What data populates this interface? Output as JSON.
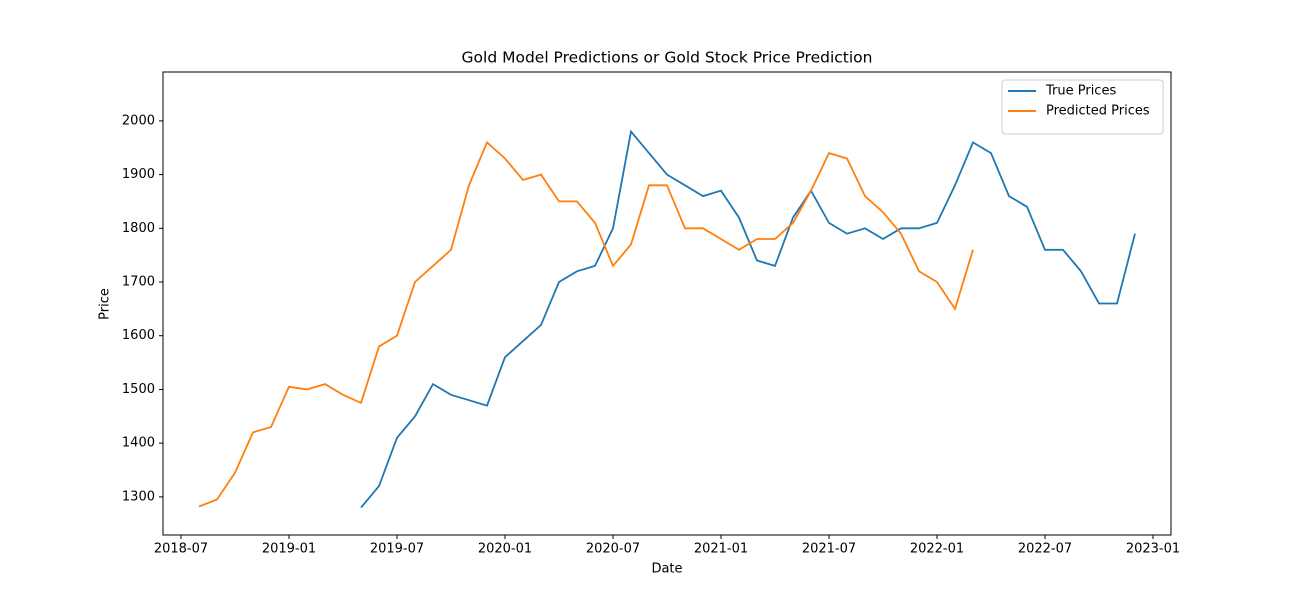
{
  "chart_data": {
    "type": "line",
    "title": "Gold Model Predictions or Gold Stock Price Prediction",
    "x_label": "Date",
    "y_label": "Price",
    "x": [
      "2018-08",
      "2018-09",
      "2018-10",
      "2018-11",
      "2018-12",
      "2019-01",
      "2019-02",
      "2019-03",
      "2019-04",
      "2019-05",
      "2019-06",
      "2019-07",
      "2019-08",
      "2019-09",
      "2019-10",
      "2019-11",
      "2019-12",
      "2020-01",
      "2020-02",
      "2020-03",
      "2020-04",
      "2020-05",
      "2020-06",
      "2020-07",
      "2020-08",
      "2020-09",
      "2020-10",
      "2020-11",
      "2020-12",
      "2021-01",
      "2021-02",
      "2021-03",
      "2021-04",
      "2021-05",
      "2021-06",
      "2021-07",
      "2021-08",
      "2021-09",
      "2021-10",
      "2021-11",
      "2021-12",
      "2022-01",
      "2022-02",
      "2022-03",
      "2022-04",
      "2022-05",
      "2022-06",
      "2022-07",
      "2022-08",
      "2022-09",
      "2022-10",
      "2022-11",
      "2022-12"
    ],
    "series": [
      {
        "name": "True Prices",
        "color": "#1f77b4",
        "values": [
          null,
          null,
          null,
          null,
          null,
          null,
          null,
          null,
          null,
          1280,
          1320,
          1410,
          1450,
          1510,
          1490,
          1480,
          1470,
          1560,
          1590,
          1620,
          1700,
          1720,
          1730,
          1800,
          1980,
          1940,
          1900,
          1880,
          1860,
          1870,
          1820,
          1740,
          1730,
          1820,
          1870,
          1810,
          1790,
          1800,
          1780,
          1800,
          1800,
          1810,
          1880,
          1960,
          1940,
          1860,
          1840,
          1760,
          1760,
          1720,
          1660,
          1660,
          1790
        ]
      },
      {
        "name": "Predicted Prices",
        "color": "#ff7f0e",
        "values": [
          1282,
          1295,
          1345,
          1420,
          1430,
          1505,
          1500,
          1510,
          1490,
          1475,
          1580,
          1600,
          1700,
          1730,
          1760,
          1880,
          1960,
          1930,
          1890,
          1900,
          1850,
          1850,
          1810,
          1730,
          1770,
          1880,
          1880,
          1800,
          1800,
          1780,
          1760,
          1780,
          1780,
          1810,
          1870,
          1940,
          1930,
          1860,
          1830,
          1790,
          1720,
          1700,
          1650,
          1760,
          null,
          null,
          null,
          null,
          null,
          null,
          null,
          null,
          null
        ]
      }
    ],
    "xlim": [
      "2018-06",
      "2023-02"
    ],
    "xticks": [
      "2018-07",
      "2019-01",
      "2019-07",
      "2020-01",
      "2020-07",
      "2021-01",
      "2021-07",
      "2022-01",
      "2022-07",
      "2023-01"
    ],
    "ylim": [
      1229,
      2091
    ],
    "yticks": [
      1300,
      1400,
      1500,
      1600,
      1700,
      1800,
      1900,
      2000
    ],
    "legend": "upper right"
  }
}
